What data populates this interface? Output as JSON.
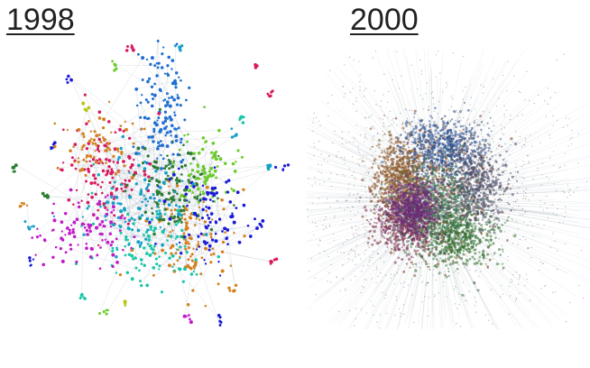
{
  "panels": [
    {
      "title": "1998",
      "style": "sparse",
      "colors": [
        "#1f6fd1",
        "#d4801c",
        "#d81b60",
        "#1ac6a8",
        "#2e7d32",
        "#6acb2a",
        "#1a1ad8",
        "#c21ac8",
        "#b8c81a",
        "#14a0c8"
      ]
    },
    {
      "title": "2000",
      "style": "dense",
      "colors": [
        "#7a3a1a",
        "#2d6e2a",
        "#2a4e8c",
        "#7a2e4e",
        "#4e4e6a",
        "#8c5a2a",
        "#3a7a5a",
        "#6a2a7a"
      ]
    }
  ]
}
